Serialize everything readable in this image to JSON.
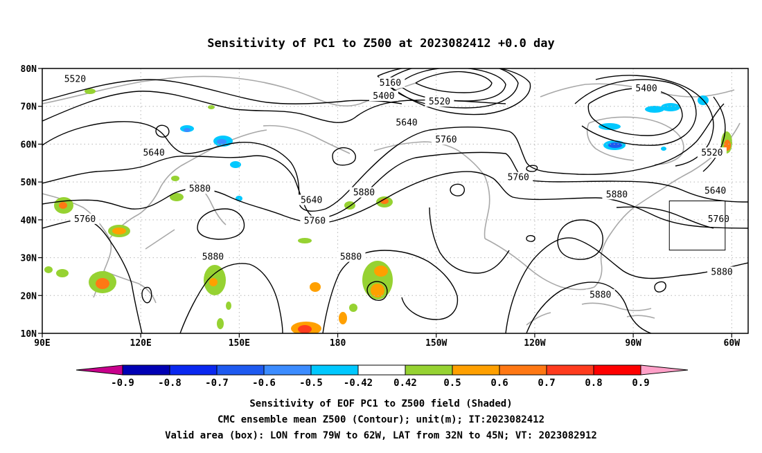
{
  "title": "Sensitivity of PC1 to Z500 at 2023082412 +0.0 day",
  "map": {
    "lat_ticks": [
      "80N",
      "70N",
      "60N",
      "50N",
      "40N",
      "30N",
      "20N",
      "10N"
    ],
    "lon_ticks": [
      "90E",
      "120E",
      "150E",
      "180",
      "150W",
      "120W",
      "90W",
      "60W"
    ],
    "grid": "dotted",
    "coast_color": "#a8a8a8",
    "contour_color": "#000000",
    "contour_labels": [
      {
        "text": "5520",
        "lon": 100,
        "lat": 77
      },
      {
        "text": "5160",
        "lon": -164,
        "lat": 76
      },
      {
        "text": "5400",
        "lon": -166,
        "lat": 72.5
      },
      {
        "text": "5520",
        "lon": -149,
        "lat": 71
      },
      {
        "text": "5400",
        "lon": -86,
        "lat": 74.5
      },
      {
        "text": "5640",
        "lon": -159,
        "lat": 65.5
      },
      {
        "text": "5760",
        "lon": -147,
        "lat": 61
      },
      {
        "text": "5640",
        "lon": 124,
        "lat": 57.5
      },
      {
        "text": "5520",
        "lon": -66,
        "lat": 57.5
      },
      {
        "text": "5760",
        "lon": -125,
        "lat": 51
      },
      {
        "text": "5880",
        "lon": 138,
        "lat": 48
      },
      {
        "text": "5880",
        "lon": -172,
        "lat": 47
      },
      {
        "text": "5880",
        "lon": -95,
        "lat": 46.5
      },
      {
        "text": "5640",
        "lon": 172,
        "lat": 45
      },
      {
        "text": "5640",
        "lon": -65,
        "lat": 47.5
      },
      {
        "text": "5760",
        "lon": 103,
        "lat": 40
      },
      {
        "text": "5760",
        "lon": 173,
        "lat": 39.5
      },
      {
        "text": "5760",
        "lon": -64,
        "lat": 40
      },
      {
        "text": "5880",
        "lon": 142,
        "lat": 30
      },
      {
        "text": "5880",
        "lon": -176,
        "lat": 30
      },
      {
        "text": "5880",
        "lon": -63,
        "lat": 26
      },
      {
        "text": "5880",
        "lon": -100,
        "lat": 20
      }
    ],
    "valid_box": {
      "lon_from": -79,
      "lon_to": -62,
      "lat_from": 32,
      "lat_to": 45
    }
  },
  "colorbar": {
    "labels": [
      "-0.9",
      "-0.8",
      "-0.7",
      "-0.6",
      "-0.5",
      "-0.42",
      "0.42",
      "0.5",
      "0.6",
      "0.7",
      "0.8",
      "0.9"
    ],
    "colors": [
      "#0000b4",
      "#0a28f0",
      "#1e5af0",
      "#3c8cff",
      "#00c8ff",
      "#ffffff",
      "#96d232",
      "#ffa000",
      "#ff7814",
      "#ff3c1e",
      "#ff0000"
    ],
    "left_end_color": "#c8008c",
    "right_end_color": "#ffa0c8"
  },
  "captions": [
    "Sensitivity of EOF PC1 to Z500 field (Shaded)",
    "CMC ensemble mean Z500 (Contour); unit(m); IT:2023082412",
    "Valid area (box): LON from 79W to 62W, LAT from 32N to 45N; VT: 2023082912"
  ]
}
